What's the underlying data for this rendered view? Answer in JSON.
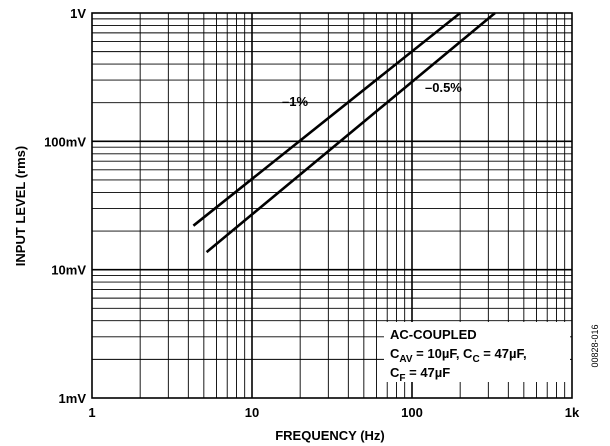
{
  "chart_data": {
    "type": "line",
    "xlabel": "FREQUENCY (Hz)",
    "ylabel": "INPUT LEVEL (rms)",
    "x_scale": "log",
    "y_scale": "log",
    "xlim": [
      1,
      1000
    ],
    "ylim": [
      0.001,
      1
    ],
    "grid": true,
    "x_ticks": [
      {
        "value": 1,
        "label": "1"
      },
      {
        "value": 10,
        "label": "10"
      },
      {
        "value": 100,
        "label": "100"
      },
      {
        "value": 1000,
        "label": "1k"
      }
    ],
    "y_ticks": [
      {
        "value": 0.001,
        "label": "1mV"
      },
      {
        "value": 0.01,
        "label": "10mV"
      },
      {
        "value": 0.1,
        "label": "100mV"
      },
      {
        "value": 1,
        "label": "1V"
      }
    ],
    "series": [
      {
        "name": "–1%",
        "x": [
          4.3,
          200
        ],
        "y": [
          0.022,
          1.0
        ]
      },
      {
        "name": "–0.5%",
        "x": [
          5.2,
          330
        ],
        "y": [
          0.0137,
          1.0
        ]
      }
    ],
    "annotation_lines": [
      "AC-COUPLED",
      "CAV = 10µF, CC = 47µF,",
      "CF = 47µF"
    ],
    "figure_id": "00828-016"
  }
}
